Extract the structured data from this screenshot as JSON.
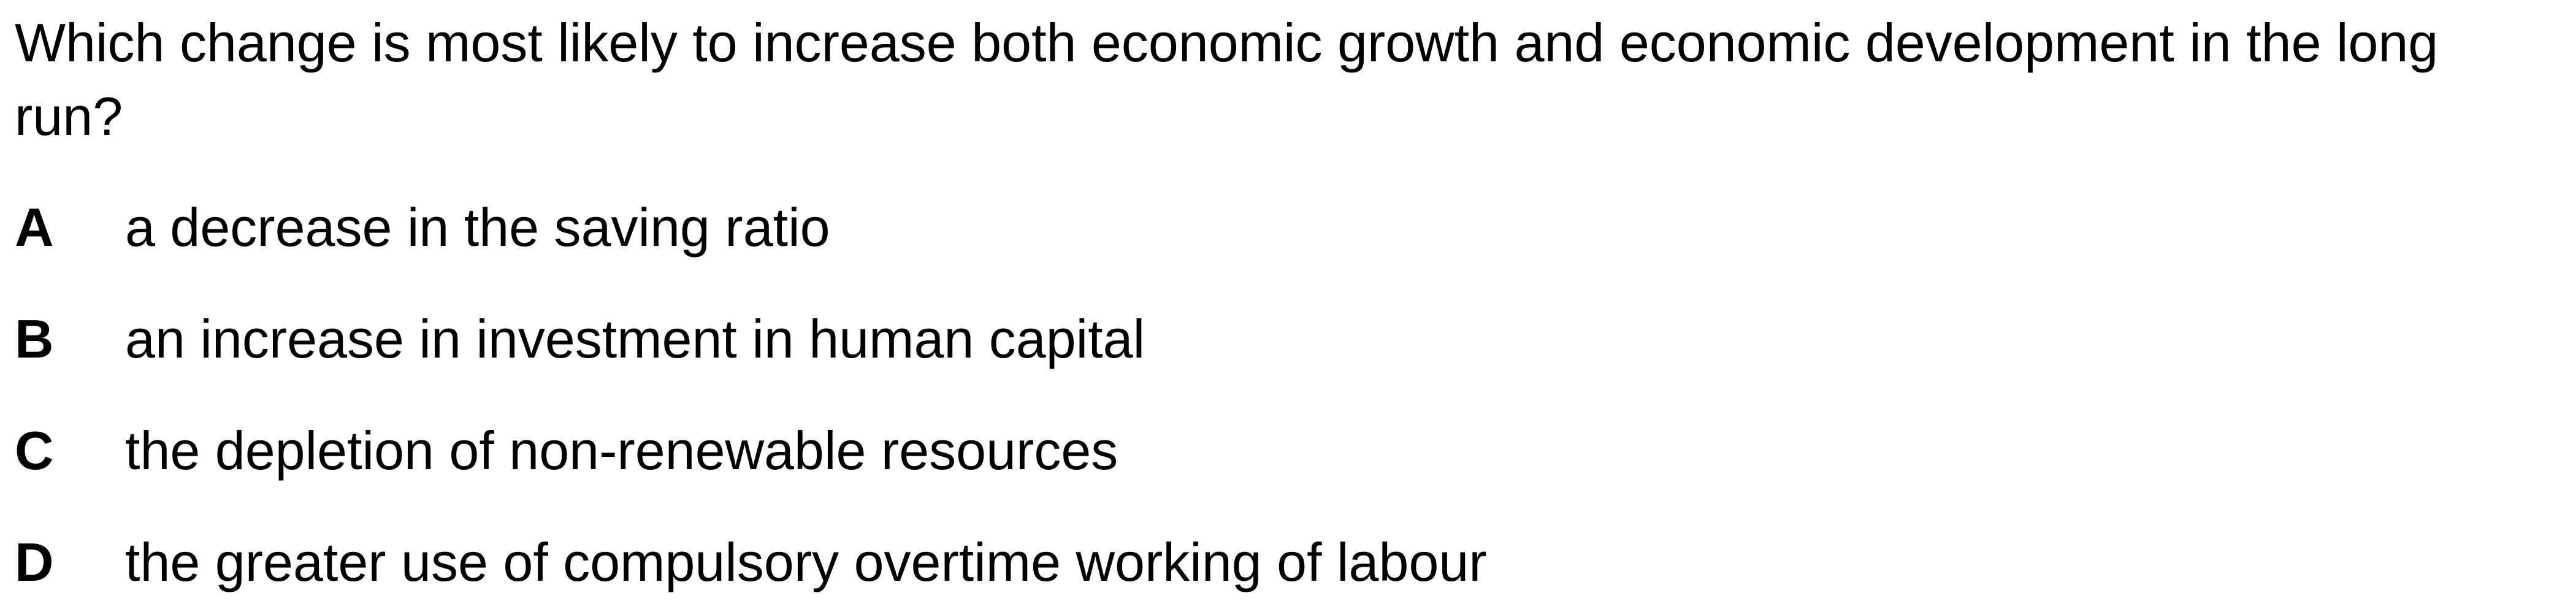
{
  "question": {
    "text": "Which change is most likely to increase both economic growth and economic development in the long run?"
  },
  "options": [
    {
      "letter": "A",
      "text": "a decrease in the saving ratio"
    },
    {
      "letter": "B",
      "text": "an increase in investment in human capital"
    },
    {
      "letter": "C",
      "text": "the depletion of non-renewable resources"
    },
    {
      "letter": "D",
      "text": "the greater use of compulsory overtime working of labour"
    }
  ]
}
